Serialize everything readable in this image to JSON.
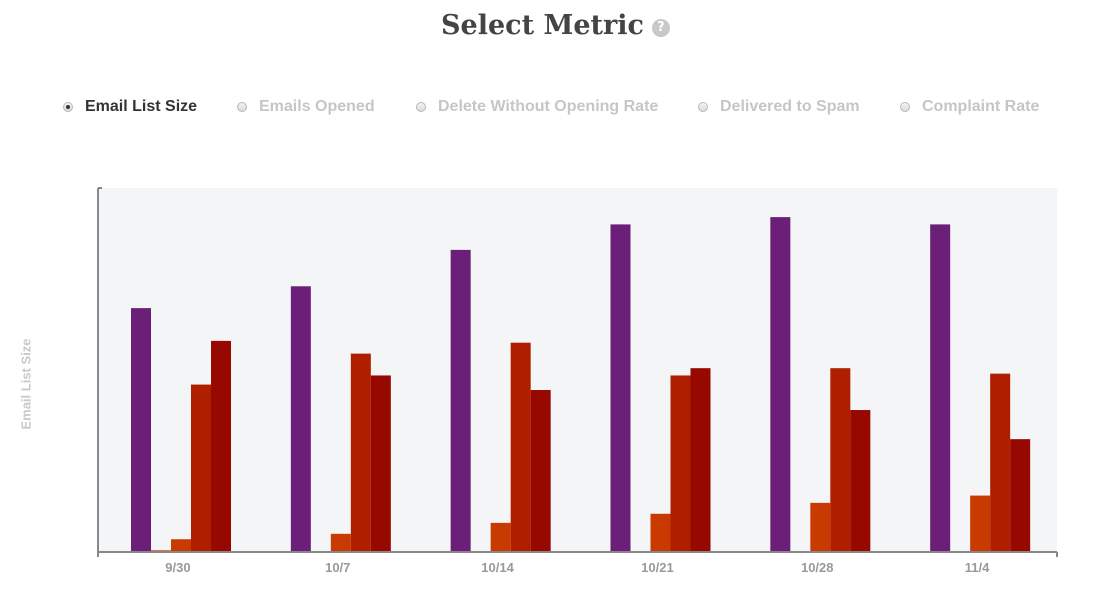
{
  "header": {
    "title": "Select Metric",
    "help_glyph": "?"
  },
  "metrics": [
    {
      "label": "Email List Size",
      "checked": true
    },
    {
      "label": "Emails Opened",
      "checked": false
    },
    {
      "label": "Delete Without Opening Rate",
      "checked": false
    },
    {
      "label": "Delivered to Spam",
      "checked": false
    },
    {
      "label": "Complaint Rate",
      "checked": false
    }
  ],
  "chart_data": {
    "type": "bar",
    "ylabel": "Email List Size",
    "xlabel": "",
    "categories": [
      "9/30",
      "10/7",
      "10/14",
      "10/21",
      "10/28",
      "11/4"
    ],
    "ylim": [
      0,
      100
    ],
    "grid": false,
    "series": [
      {
        "color": "#6b1f78",
        "values": [
          67,
          73,
          83,
          90,
          92,
          90
        ]
      },
      {
        "color": "#d45a1e",
        "values": [
          0.5,
          0,
          0,
          0,
          0,
          0
        ]
      },
      {
        "color": "#c93a00",
        "values": [
          3.5,
          5,
          8,
          10.5,
          13.5,
          15.5
        ]
      },
      {
        "color": "#b01e00",
        "values": [
          46,
          54.5,
          57.5,
          48.5,
          50.5,
          49
        ]
      },
      {
        "color": "#960800",
        "values": [
          58,
          48.5,
          44.5,
          50.5,
          39,
          31
        ]
      }
    ],
    "colors": {
      "plot_background": "#f4f5f6",
      "axis": "#888888"
    }
  }
}
